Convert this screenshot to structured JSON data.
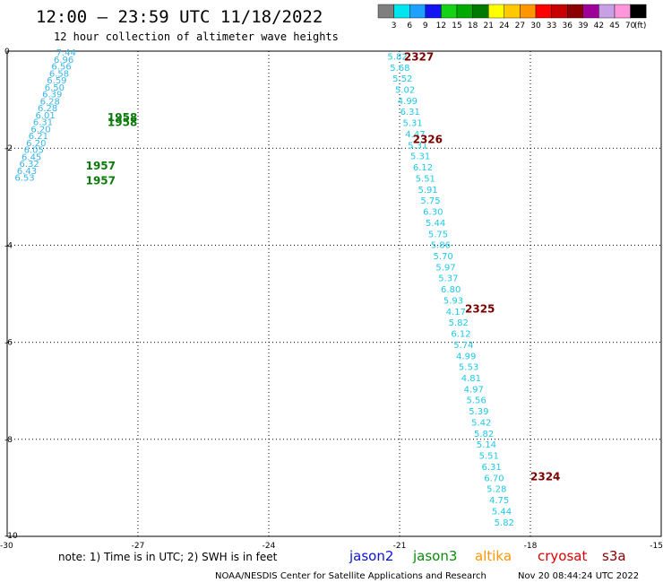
{
  "header": {
    "title": "12:00 – 23:59 UTC 11/18/2022",
    "subtitle": "12 hour collection of altimeter wave heights"
  },
  "colorbar": {
    "labels": [
      "3",
      "6",
      "9",
      "12",
      "15",
      "18",
      "21",
      "24",
      "27",
      "30",
      "33",
      "36",
      "39",
      "42",
      "45",
      "70"
    ],
    "unit": "(ft)",
    "colors": [
      "#7f7f7f",
      "#00e5ee",
      "#1ea0ff",
      "#1414f0",
      "#14d214",
      "#00aa00",
      "#007a00",
      "#ffff00",
      "#ffc800",
      "#ff9600",
      "#ff0000",
      "#c80000",
      "#8b0000",
      "#a0009a",
      "#c8a0e6",
      "#ff96dc",
      "#000000"
    ]
  },
  "chart_data": {
    "type": "scatter",
    "xlim": [
      -30,
      -15
    ],
    "ylim": [
      -10,
      0
    ],
    "x_ticks": [
      "-30",
      "-27",
      "-24",
      "-21",
      "-18",
      "-15"
    ],
    "y_ticks": [
      "0",
      "-2",
      "-4",
      "-6",
      "-8",
      "-10"
    ],
    "grid": true,
    "swh_color": "#1ec8e6",
    "swh_color_track2": "#38b4e6",
    "pass_color_green": "#0a7a0a",
    "pass_color_red": "#7a0000",
    "tracks": [
      {
        "x_start": -28.65,
        "y_start": -0.02,
        "x_end": -29.6,
        "y_end": -2.6,
        "values": [
          "7.44",
          "6.96",
          "6.56",
          "6.58",
          "6.59",
          "6.50",
          "6.39",
          "6.28",
          "6.28",
          "6.01",
          "6.31",
          "6.20",
          "6.21",
          "6.20",
          "6.05",
          "6.45",
          "6.32",
          "6.43",
          "6.53"
        ]
      },
      {
        "x_start": -21.05,
        "y_start": -0.1,
        "x_end": -18.6,
        "y_end": -9.7,
        "values": [
          "5.82",
          "5.68",
          "5.52",
          "5.02",
          "4.99",
          "6.31",
          "5.31",
          "4.47",
          "5.31",
          "5.31",
          "6.12",
          "5.51",
          "5.91",
          "5.75",
          "6.30",
          "5.44",
          "5.75",
          "5.86",
          "5.70",
          "5.97",
          "5.37",
          "6.80",
          "5.93",
          "4.17",
          "5.82",
          "6.12",
          "5.74",
          "4.99",
          "5.53",
          "4.81",
          "4.97",
          "5.56",
          "5.39",
          "5.42",
          "5.82",
          "5.14",
          "5.51",
          "6.31",
          "6.70",
          "5.28",
          "4.75",
          "5.44",
          "5.82"
        ]
      }
    ],
    "pass_labels": [
      {
        "text": "1958",
        "x": -27.7,
        "y": -1.35,
        "color": "green"
      },
      {
        "text": "1958",
        "x": -27.7,
        "y": -1.45,
        "color": "green"
      },
      {
        "text": "1957",
        "x": -28.2,
        "y": -2.35,
        "color": "green"
      },
      {
        "text": "1957",
        "x": -28.2,
        "y": -2.65,
        "color": "green"
      },
      {
        "text": "2327",
        "x": -20.9,
        "y": -0.1,
        "color": "red"
      },
      {
        "text": "2326",
        "x": -20.7,
        "y": -1.8,
        "color": "red"
      },
      {
        "text": "2325",
        "x": -19.5,
        "y": -5.3,
        "color": "red"
      },
      {
        "text": "2324",
        "x": -18.0,
        "y": -8.75,
        "color": "red"
      }
    ]
  },
  "note": "note: 1) Time is in UTC; 2) SWH is in feet",
  "satellites": [
    {
      "name": "jason2",
      "color": "#0a14d2"
    },
    {
      "name": "jason3",
      "color": "#0a8c0a"
    },
    {
      "name": "altika",
      "color": "#ff9600"
    },
    {
      "name": "cryosat",
      "color": "#dc0000"
    },
    {
      "name": "s3a",
      "color": "#8b0000"
    }
  ],
  "footer": {
    "credit": "NOAA/NESDIS Center for Satellite Applications and Research",
    "timestamp": "Nov 20 08:44:24 UTC 2022"
  }
}
